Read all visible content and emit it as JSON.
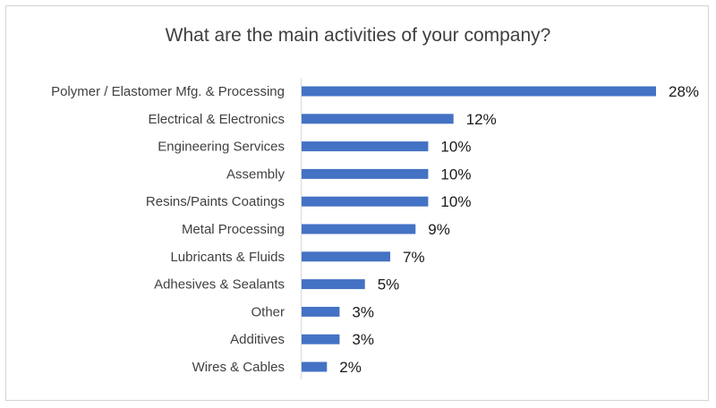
{
  "chart_data": {
    "type": "bar",
    "orientation": "horizontal",
    "title": "What are the main activities of your company?",
    "categories": [
      "Polymer / Elastomer Mfg. & Processing",
      "Electrical & Electronics",
      "Engineering Services",
      "Assembly",
      "Resins/Paints Coatings",
      "Metal Processing",
      "Lubricants & Fluids",
      "Adhesives & Sealants",
      "Other",
      "Additives",
      "Wires & Cables"
    ],
    "values": [
      28,
      12,
      10,
      10,
      10,
      9,
      7,
      5,
      3,
      3,
      2
    ],
    "value_labels": [
      "28%",
      "12%",
      "10%",
      "10%",
      "10%",
      "9%",
      "7%",
      "5%",
      "3%",
      "3%",
      "2%"
    ],
    "unit": "%",
    "xlim": [
      0,
      28
    ],
    "bar_color": "#4472c4",
    "grid": false,
    "legend": "none"
  }
}
